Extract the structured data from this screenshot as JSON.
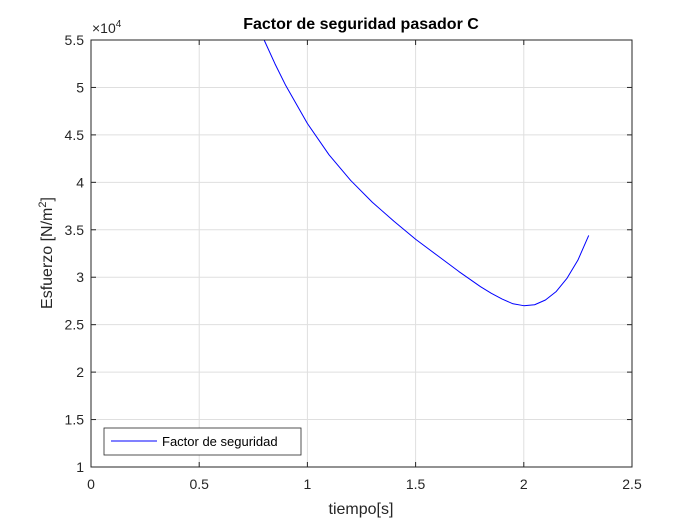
{
  "chart_data": {
    "type": "line",
    "title": "Factor de seguridad pasador C",
    "xlabel": "tiempo[s]",
    "ylabel_main": "Esfuerzo [N/m",
    "ylabel_sup": "2",
    "ylabel_end": "]",
    "exponent_base": "×10",
    "exponent_power": "4",
    "xlim": [
      0,
      2.5
    ],
    "ylim": [
      10000,
      55000
    ],
    "xticks": [
      0,
      0.5,
      1,
      1.5,
      2,
      2.5
    ],
    "xtick_labels": [
      "0",
      "0.5",
      "1",
      "1.5",
      "2",
      "2.5"
    ],
    "yticks": [
      10000,
      15000,
      20000,
      25000,
      30000,
      35000,
      40000,
      45000,
      50000,
      55000
    ],
    "ytick_labels": [
      "1",
      "1.5",
      "2",
      "2.5",
      "3",
      "3.5",
      "4",
      "4.5",
      "5",
      "5.5"
    ],
    "grid": true,
    "legend_position": "bottom-left",
    "series": [
      {
        "name": "Factor de seguridad",
        "color": "#0000ff",
        "x": [
          0.8,
          0.85,
          0.9,
          0.95,
          1.0,
          1.1,
          1.2,
          1.3,
          1.4,
          1.5,
          1.6,
          1.7,
          1.8,
          1.85,
          1.9,
          1.95,
          2.0,
          2.05,
          2.1,
          2.15,
          2.2,
          2.25,
          2.3
        ],
        "y": [
          55000,
          52500,
          50200,
          48200,
          46200,
          42900,
          40200,
          37900,
          35900,
          34000,
          32300,
          30600,
          29000,
          28300,
          27700,
          27200,
          27000,
          27100,
          27600,
          28500,
          29900,
          31800,
          34400
        ]
      }
    ]
  }
}
